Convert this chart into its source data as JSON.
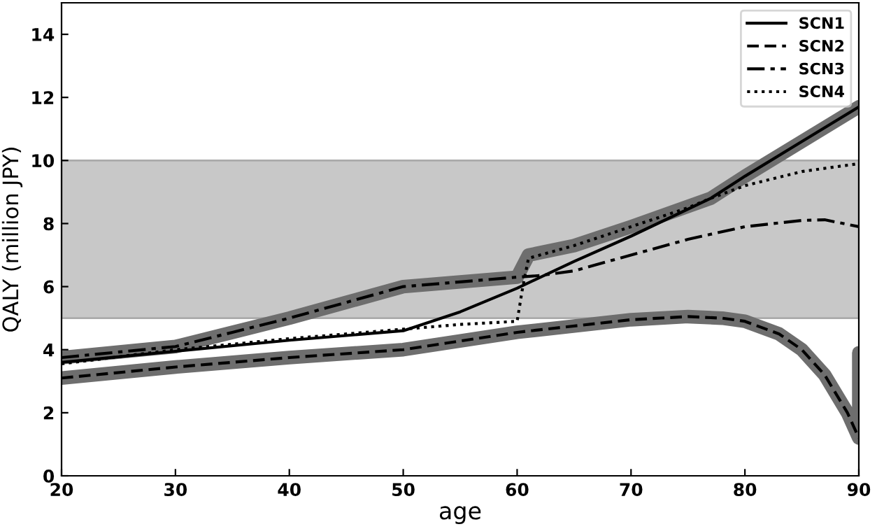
{
  "chart_data": {
    "type": "line",
    "xlabel": "age",
    "ylabel": "QALY (million JPY)",
    "xlim": [
      20,
      90
    ],
    "ylim": [
      0,
      15
    ],
    "xticks": [
      20,
      30,
      40,
      50,
      60,
      70,
      80,
      90
    ],
    "yticks": [
      0,
      2,
      4,
      6,
      8,
      10,
      12,
      14
    ],
    "grid": false,
    "legend": "top right",
    "bands": [
      {
        "axis": "y",
        "from": 5,
        "to": 10,
        "color": "#c8c8c8"
      }
    ],
    "series": [
      {
        "color": "#6e6e6e",
        "line_style": "solid",
        "x": [
          20,
          30,
          35,
          40,
          45,
          50,
          55,
          60,
          61,
          65,
          70,
          77,
          80,
          85,
          90
        ],
        "values": [
          3.75,
          4.1,
          4.55,
          5.0,
          5.5,
          6.0,
          6.15,
          6.3,
          7.0,
          7.3,
          7.9,
          8.8,
          9.5,
          10.6,
          11.7
        ]
      },
      {
        "color": "#6e6e6e",
        "line_style": "solid",
        "x": [
          20,
          30,
          40,
          50,
          60,
          70,
          75,
          78,
          80,
          83,
          85,
          87,
          89,
          90,
          90
        ],
        "values": [
          3.1,
          3.45,
          3.75,
          4.0,
          4.55,
          4.95,
          5.05,
          5.0,
          4.9,
          4.5,
          4.0,
          3.2,
          2.0,
          1.2,
          3.9
        ]
      },
      {
        "name": "SCN1",
        "color": "#000000",
        "line_style": "solid",
        "x": [
          20,
          30,
          40,
          50,
          55,
          60,
          65,
          70,
          77,
          80,
          85,
          90
        ],
        "values": [
          3.6,
          3.95,
          4.3,
          4.6,
          5.2,
          5.95,
          6.8,
          7.6,
          8.8,
          9.5,
          10.6,
          11.7
        ]
      },
      {
        "name": "SCN2",
        "color": "#000000",
        "line_style": "dashed",
        "x": [
          20,
          30,
          40,
          50,
          60,
          70,
          75,
          78,
          80,
          83,
          85,
          87,
          89,
          90
        ],
        "values": [
          3.1,
          3.45,
          3.75,
          4.0,
          4.55,
          4.95,
          5.05,
          5.0,
          4.9,
          4.5,
          4.0,
          3.2,
          2.0,
          1.2
        ]
      },
      {
        "name": "SCN3",
        "color": "#000000",
        "line_style": "dashdot",
        "x": [
          20,
          30,
          35,
          40,
          45,
          50,
          55,
          60,
          62,
          65,
          70,
          75,
          80,
          85,
          87,
          90
        ],
        "values": [
          3.75,
          4.1,
          4.55,
          5.0,
          5.5,
          6.0,
          6.15,
          6.3,
          6.35,
          6.5,
          7.0,
          7.5,
          7.9,
          8.1,
          8.12,
          7.9
        ]
      },
      {
        "name": "SCN4",
        "color": "#000000",
        "line_style": "dotted",
        "x": [
          20,
          30,
          40,
          50,
          55,
          60,
          60.5,
          61,
          65,
          70,
          75,
          77,
          80,
          85,
          90
        ],
        "values": [
          3.55,
          4.0,
          4.35,
          4.65,
          4.8,
          4.9,
          6.0,
          6.9,
          7.3,
          7.9,
          8.5,
          8.8,
          9.2,
          9.65,
          9.9
        ]
      }
    ]
  }
}
